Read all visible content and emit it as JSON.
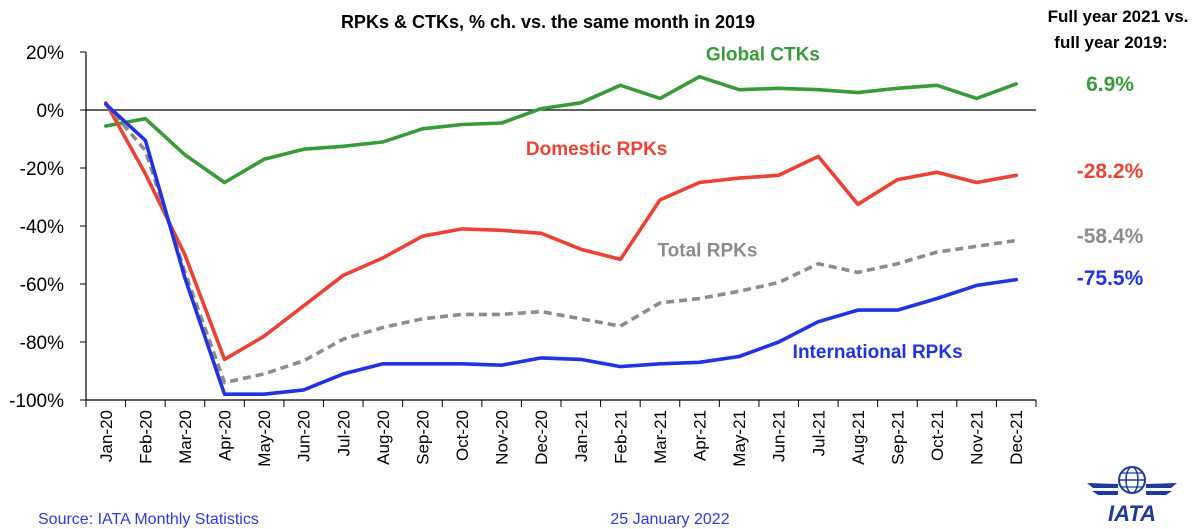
{
  "chart_data": {
    "type": "line",
    "title": "RPKs & CTKs, % ch. vs. the same month in 2019",
    "ylim": [
      -100,
      20
    ],
    "yticks": [
      "20%",
      "0%",
      "-20%",
      "-40%",
      "-60%",
      "-80%",
      "-100%"
    ],
    "ytick_values": [
      20,
      0,
      -20,
      -40,
      -60,
      -80,
      -100
    ],
    "categories": [
      "Jan-20",
      "Feb-20",
      "Mar-20",
      "Apr-20",
      "May-20",
      "Jun-20",
      "Jul-20",
      "Aug-20",
      "Sep-20",
      "Oct-20",
      "Nov-20",
      "Dec-20",
      "Jan-21",
      "Feb-21",
      "Mar-21",
      "Apr-21",
      "May-21",
      "Jun-21",
      "Jul-21",
      "Aug-21",
      "Sep-21",
      "Oct-21",
      "Nov-21",
      "Dec-21"
    ],
    "series": [
      {
        "name": "Global CTKs",
        "color": "#3a9a3a",
        "dash": "solid",
        "values": [
          -5.5,
          -3,
          -15.5,
          -25,
          -17,
          -13.5,
          -12.5,
          -11,
          -6.5,
          -5,
          -4.5,
          0.5,
          2.5,
          8.5,
          4,
          11.5,
          7,
          7.5,
          7,
          6,
          7.5,
          8.5,
          4,
          9
        ]
      },
      {
        "name": "Domestic RPKs",
        "color": "#ea4335",
        "dash": "solid",
        "values": [
          2.5,
          -22,
          -50,
          -86,
          -78,
          -67.5,
          -57,
          -51,
          -43.5,
          -41,
          -41.5,
          -42.5,
          -48,
          -51.5,
          -31,
          -25,
          -23.5,
          -22.5,
          -16,
          -32.5,
          -24,
          -21.5,
          -25,
          -22.5
        ]
      },
      {
        "name": "Total RPKs",
        "color": "#8c8c8c",
        "dash": "dashed",
        "values": [
          2,
          -14,
          -56,
          -94,
          -91,
          -86.5,
          -79,
          -75,
          -72,
          -70.5,
          -70.5,
          -69.5,
          -72,
          -74.5,
          -66.5,
          -65,
          -62.5,
          -59.5,
          -53,
          -56,
          -53,
          -49,
          -47,
          -45
        ]
      },
      {
        "name": "International RPKs",
        "color": "#2233e0",
        "dash": "solid",
        "values": [
          2,
          -10.5,
          -58,
          -98,
          -98,
          -96.5,
          -91,
          -87.5,
          -87.5,
          -87.5,
          -88,
          -85.5,
          -86,
          -88.5,
          -87.5,
          -87,
          -85,
          -80,
          -73,
          -69,
          -69,
          -65,
          -60.5,
          -58.5
        ]
      }
    ],
    "full_year": {
      "heading_line1": "Full year 2021 vs.",
      "heading_line2": "full year 2019:",
      "values": [
        {
          "series": "Global CTKs",
          "value": "6.9%",
          "color": "#3a9a3a"
        },
        {
          "series": "Domestic RPKs",
          "value": "-28.2%",
          "color": "#ea4335"
        },
        {
          "series": "Total RPKs",
          "value": "-58.4%",
          "color": "#8c8c8c"
        },
        {
          "series": "International RPKs",
          "value": "-75.5%",
          "color": "#2233e0"
        }
      ]
    }
  },
  "footer": {
    "source": "Source: IATA Monthly Statistics",
    "date": "25 January 2022",
    "logo_text": "IATA",
    "logo_brand_color": "#1e3a9a"
  }
}
